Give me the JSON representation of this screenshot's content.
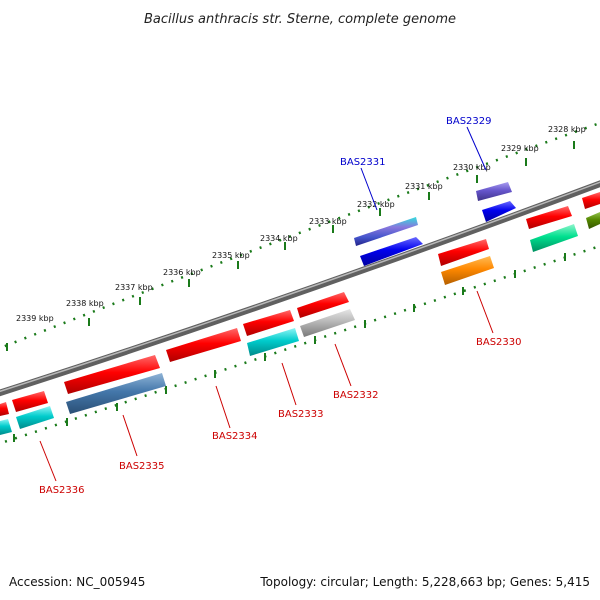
{
  "title": "Bacillus anthracis str. Sterne, complete genome",
  "footer": {
    "accession": "Accession: NC_005945",
    "summary": "Topology: circular; Length: 5,228,663 bp; Genes: 5,415"
  },
  "scale": {
    "ticks": [
      {
        "label": "2328 kbp",
        "kbp": 2328
      },
      {
        "label": "2329 kbp",
        "kbp": 2329
      },
      {
        "label": "2330 kbp",
        "kbp": 2330
      },
      {
        "label": "2331 kbp",
        "kbp": 2331
      },
      {
        "label": "2332 kbp",
        "kbp": 2332
      },
      {
        "label": "2333 kbp",
        "kbp": 2333
      },
      {
        "label": "2334 kbp",
        "kbp": 2334
      },
      {
        "label": "2335 kbp",
        "kbp": 2335
      },
      {
        "label": "2336 kbp",
        "kbp": 2336
      },
      {
        "label": "2337 kbp",
        "kbp": 2337
      },
      {
        "label": "2338 kbp",
        "kbp": 2338
      },
      {
        "label": "2339 kbp",
        "kbp": 2339
      }
    ]
  },
  "gene_labels": [
    {
      "id": "BAS2329",
      "text": "BAS2329",
      "strand": "outer"
    },
    {
      "id": "BAS2331",
      "text": "BAS2331",
      "strand": "outer"
    },
    {
      "id": "BAS2330",
      "text": "BAS2330",
      "strand": "inner"
    },
    {
      "id": "BAS2332",
      "text": "BAS2332",
      "strand": "inner"
    },
    {
      "id": "BAS2333",
      "text": "BAS2333",
      "strand": "inner"
    },
    {
      "id": "BAS2334",
      "text": "BAS2334",
      "strand": "inner"
    },
    {
      "id": "BAS2335",
      "text": "BAS2335",
      "strand": "inner"
    },
    {
      "id": "BAS2336",
      "text": "BAS2336",
      "strand": "inner"
    }
  ],
  "colors": {
    "backbone": "#808080",
    "tick": "#1a7a1a",
    "forward_gene": "#ff0000",
    "reverse_cds": "#00cccc",
    "blue_gene": "#0000ee",
    "purple_gene": "#6655cc",
    "orange_gene": "#ff8800",
    "green_gene": "#00cc88",
    "olive_gene": "#558800",
    "steel_gene": "#4477aa",
    "gray_gene": "#aaaaaa",
    "label_forward": "#0000cc",
    "label_reverse": "#cc0000"
  }
}
